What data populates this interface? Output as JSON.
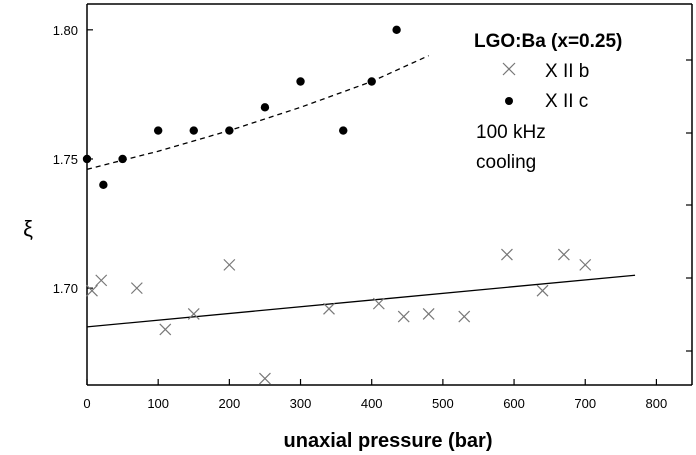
{
  "chart_data": {
    "type": "scatter",
    "title": "",
    "xlabel": "unaxial pressure (bar)",
    "ylabel": "ξ",
    "xlim": [
      0,
      850
    ],
    "ylim": [
      1.6625,
      1.81
    ],
    "x_ticks": [
      0,
      100,
      200,
      300,
      400,
      500,
      600,
      700,
      800
    ],
    "x_tick_labels": [
      "0",
      "100",
      "200",
      "300",
      "400",
      "500",
      "600",
      "700",
      "800"
    ],
    "y_ticks": [
      1.7,
      1.75,
      1.8
    ],
    "y_tick_labels": [
      "1.70",
      "1.75",
      "1.80"
    ],
    "grid": false,
    "legend": {
      "placement": "top-right",
      "title": "LGO:Ba (x=0.25)",
      "entries": [
        "X II b",
        "X II c"
      ],
      "extra_lines": [
        "100 kHz",
        "cooling"
      ]
    },
    "series": [
      {
        "name": "X II b",
        "marker": "x",
        "color": "#777777",
        "points": [
          [
            7,
            1.699
          ],
          [
            20,
            1.703
          ],
          [
            70,
            1.7
          ],
          [
            110,
            1.684
          ],
          [
            150,
            1.69
          ],
          [
            200,
            1.709
          ],
          [
            250,
            1.665
          ],
          [
            340,
            1.692
          ],
          [
            410,
            1.694
          ],
          [
            445,
            1.689
          ],
          [
            480,
            1.69
          ],
          [
            530,
            1.689
          ],
          [
            590,
            1.713
          ],
          [
            640,
            1.699
          ],
          [
            670,
            1.713
          ],
          [
            700,
            1.709
          ]
        ]
      },
      {
        "name": "X II c",
        "marker": "dot",
        "color": "#000000",
        "points": [
          [
            0,
            1.75
          ],
          [
            23,
            1.74
          ],
          [
            50,
            1.75
          ],
          [
            100,
            1.761
          ],
          [
            150,
            1.761
          ],
          [
            200,
            1.761
          ],
          [
            250,
            1.77
          ],
          [
            300,
            1.78
          ],
          [
            360,
            1.761
          ],
          [
            400,
            1.78
          ],
          [
            435,
            1.8
          ]
        ]
      }
    ],
    "fits": [
      {
        "series": "X II b",
        "style": "solid",
        "x": [
          0,
          770
        ],
        "y": [
          1.685,
          1.705
        ]
      },
      {
        "series": "X II c",
        "style": "dashed",
        "x": [
          0,
          100,
          200,
          300,
          400,
          480
        ],
        "y": [
          1.746,
          1.753,
          1.761,
          1.77,
          1.78,
          1.79
        ]
      }
    ]
  }
}
